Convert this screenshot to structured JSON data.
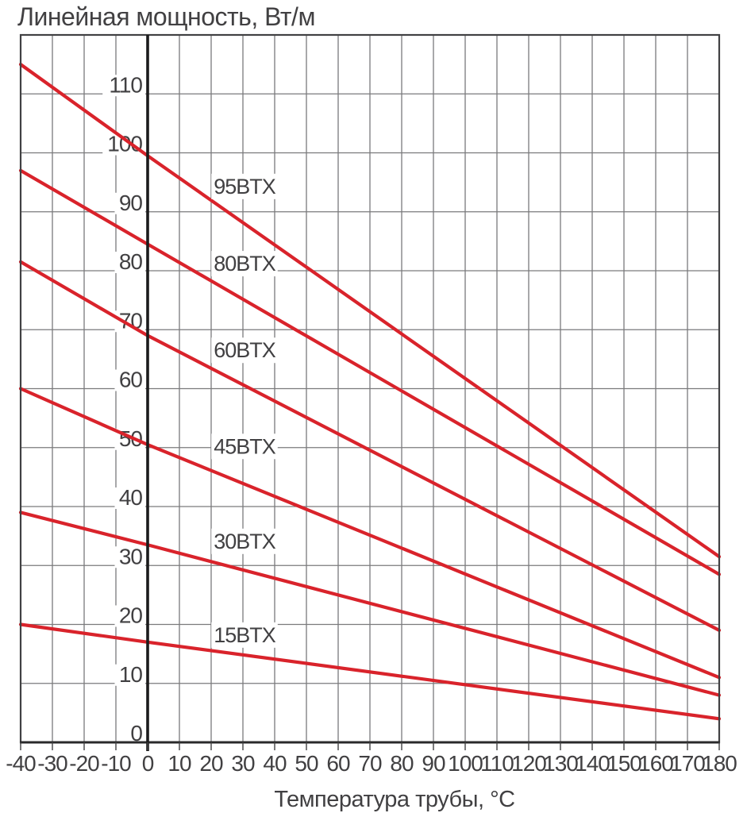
{
  "page": {
    "background": "#ffffff"
  },
  "chart_data": {
    "type": "line",
    "title": "Линейная мощность, Вт/м",
    "xlabel": "Температура трубы, °C",
    "ylabel": "Линейная мощность, Вт/м",
    "xlim": [
      -40,
      180
    ],
    "ylim": [
      0,
      120
    ],
    "grid": true,
    "legend_position": "inline-labels",
    "x_ticks": [
      -40,
      -30,
      -20,
      -10,
      0,
      10,
      20,
      30,
      40,
      50,
      60,
      70,
      80,
      90,
      100,
      110,
      120,
      130,
      140,
      150,
      160,
      170,
      180
    ],
    "y_ticks": [
      0,
      10,
      20,
      30,
      40,
      50,
      60,
      70,
      80,
      90,
      100,
      110
    ],
    "x": [
      -40,
      0,
      180
    ],
    "series": [
      {
        "name": "95BTX",
        "values": [
          115.0,
          99.5,
          31.5
        ],
        "label_text": "95BTX",
        "label_x": 30.5,
        "label_y": 94.3
      },
      {
        "name": "80BTX",
        "values": [
          97.0,
          84.5,
          28.5
        ],
        "label_text": "80BTX",
        "label_x": 30.5,
        "label_y": 81.2
      },
      {
        "name": "60BTX",
        "values": [
          81.5,
          69.0,
          19.0
        ],
        "label_text": "60BTX",
        "label_x": 30.5,
        "label_y": 66.5
      },
      {
        "name": "45BTX",
        "values": [
          60.0,
          50.5,
          11.0
        ],
        "label_text": "45BTX",
        "label_x": 30.5,
        "label_y": 50.2
      },
      {
        "name": "30BTX",
        "values": [
          39.0,
          33.5,
          8.0
        ],
        "label_text": "30BTX",
        "label_x": 30.5,
        "label_y": 34.1
      },
      {
        "name": "15BTX",
        "values": [
          20.0,
          17.0,
          4.0
        ],
        "label_text": "15BTX",
        "label_x": 30.5,
        "label_y": 18.2
      }
    ],
    "colors": {
      "line": "#d9232b",
      "grid": "#7a7a7c",
      "frame": "#414143",
      "bottom_axis": "#2a2a2b",
      "zero_axis": "#1b1b1c",
      "text": "#414042",
      "label_bg": "#ffffff"
    }
  }
}
